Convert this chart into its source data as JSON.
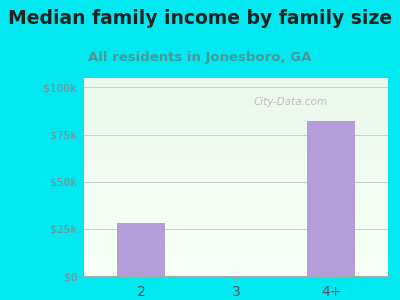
{
  "title": "Median family income by family size",
  "subtitle": "All residents in Jonesboro, GA",
  "categories": [
    "2",
    "3",
    "4+"
  ],
  "values": [
    28000,
    0,
    82000
  ],
  "bar_color": "#b39ddb",
  "title_color": "#222222",
  "subtitle_color": "#4a9a9a",
  "bg_color": "#00e8f0",
  "yticks": [
    0,
    25000,
    50000,
    75000,
    100000
  ],
  "ytick_labels": [
    "$0",
    "$25k",
    "$50k",
    "$75k",
    "$100k"
  ],
  "ylim": [
    0,
    105000
  ],
  "watermark": "City-Data.com",
  "title_fontsize": 13.5,
  "subtitle_fontsize": 9.5,
  "ytick_color": "#888888",
  "xtick_color": "#555555",
  "grid_color": "#cccccc"
}
